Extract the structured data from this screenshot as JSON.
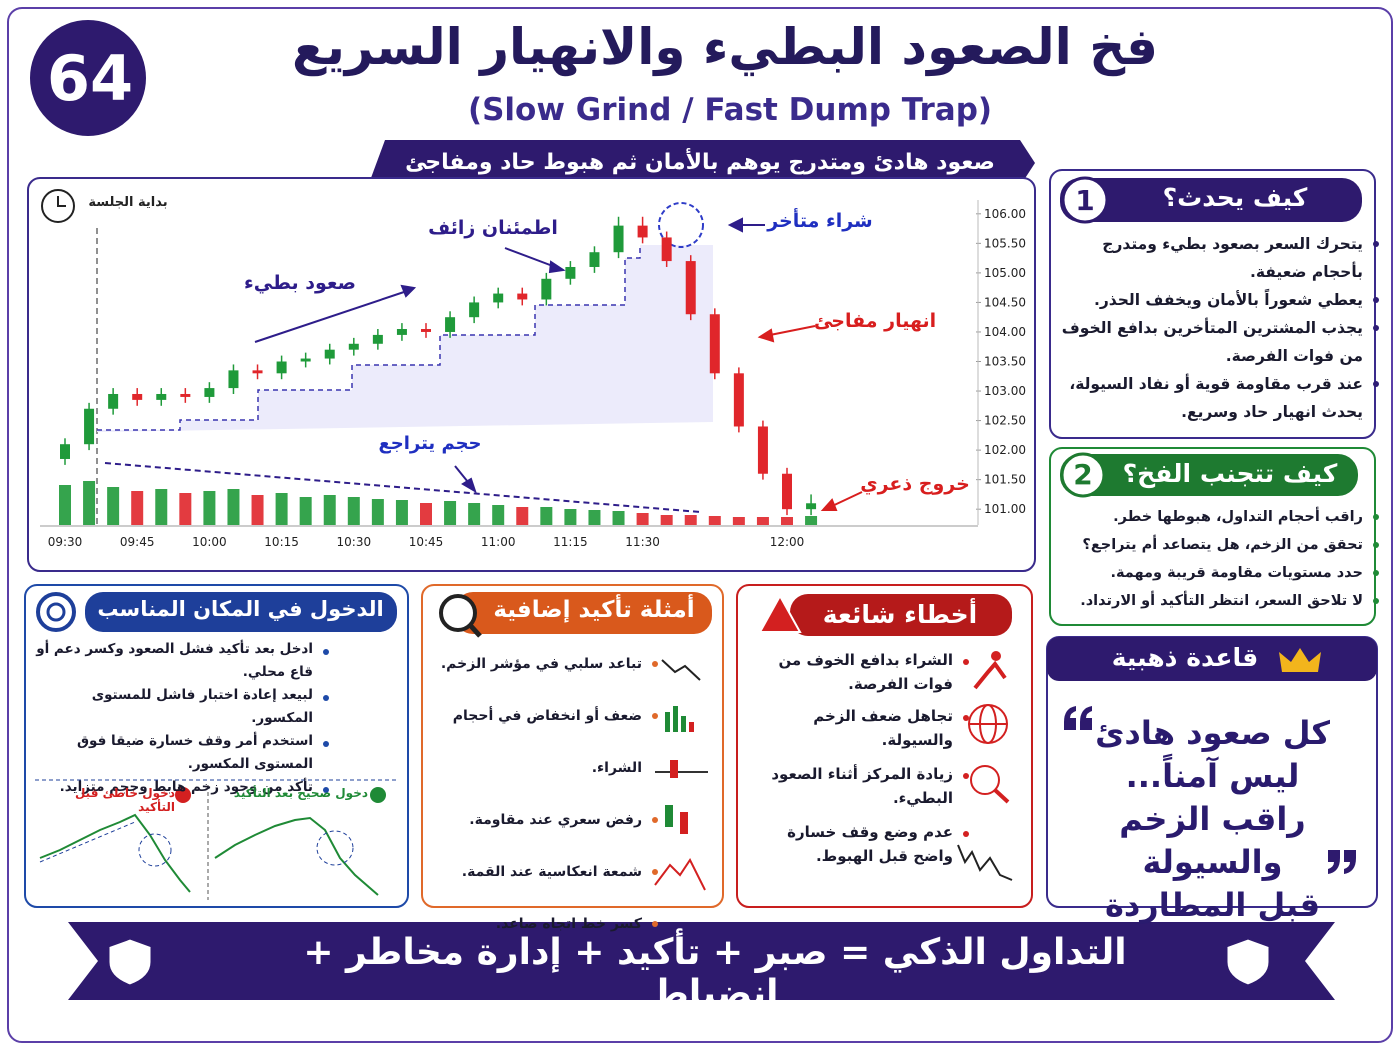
{
  "header": {
    "badge": "64",
    "title": "فخ الصعود البطيء والانهيار السريع",
    "subtitle": "(Slow Grind / Fast Dump Trap)",
    "banner": "صعود هادئ ومتدرج يوهم بالأمان ثم هبوط حاد ومفاجئ"
  },
  "chart_data": {
    "type": "candlestick",
    "annotations": {
      "session_start": "بداية الجلسة",
      "slow_rise": "صعود بطيء",
      "false_calm": "اطمئنان زائف",
      "late_buy": "شراء متأخر",
      "sudden_crash": "انهيار مفاجئ",
      "volume_decline": "حجم يتراجع",
      "panic_exit": "خروج ذعري"
    },
    "x": [
      "09:30",
      "09:35",
      "09:40",
      "09:45",
      "09:50",
      "09:55",
      "10:00",
      "10:05",
      "10:10",
      "10:15",
      "10:20",
      "10:25",
      "10:30",
      "10:35",
      "10:40",
      "10:45",
      "10:50",
      "10:55",
      "11:00",
      "11:05",
      "11:10",
      "11:15",
      "11:20",
      "11:25",
      "11:30",
      "11:35",
      "11:40",
      "11:45",
      "11:50",
      "11:55",
      "12:00",
      "12:05"
    ],
    "open": [
      101.85,
      102.1,
      102.7,
      102.95,
      102.85,
      102.95,
      102.9,
      103.05,
      103.35,
      103.3,
      103.5,
      103.55,
      103.7,
      103.8,
      103.95,
      104.05,
      104.0,
      104.25,
      104.5,
      104.65,
      104.55,
      104.9,
      105.1,
      105.35,
      105.8,
      105.6,
      105.2,
      104.3,
      103.3,
      102.4,
      101.6,
      101.0
    ],
    "high": [
      102.2,
      102.8,
      103.05,
      103.05,
      103.05,
      103.05,
      103.15,
      103.45,
      103.45,
      103.6,
      103.65,
      103.8,
      103.9,
      104.05,
      104.15,
      104.15,
      104.35,
      104.6,
      104.75,
      104.75,
      105.0,
      105.2,
      105.45,
      105.95,
      105.95,
      105.7,
      105.3,
      104.4,
      103.4,
      102.5,
      101.7,
      101.25
    ],
    "low": [
      101.75,
      102.0,
      102.6,
      102.75,
      102.75,
      102.8,
      102.8,
      102.95,
      103.2,
      103.2,
      103.4,
      103.45,
      103.6,
      103.7,
      103.85,
      103.9,
      103.9,
      104.15,
      104.4,
      104.45,
      104.45,
      104.8,
      105.0,
      105.25,
      105.5,
      105.1,
      104.2,
      103.2,
      102.3,
      101.5,
      100.9,
      100.9
    ],
    "close": [
      102.1,
      102.7,
      102.95,
      102.85,
      102.95,
      102.9,
      103.05,
      103.35,
      103.3,
      103.5,
      103.55,
      103.7,
      103.8,
      103.95,
      104.05,
      104.0,
      104.25,
      104.5,
      104.65,
      104.55,
      104.9,
      105.1,
      105.35,
      105.8,
      105.6,
      105.2,
      104.3,
      103.3,
      102.4,
      101.6,
      101.0,
      101.1
    ],
    "volume": [
      40,
      44,
      38,
      34,
      36,
      32,
      34,
      36,
      30,
      32,
      28,
      30,
      28,
      26,
      25,
      22,
      24,
      22,
      20,
      18,
      18,
      16,
      15,
      14,
      12,
      10,
      10,
      9,
      8,
      8,
      8,
      9
    ],
    "up_color": "#1f9a3a",
    "down_color": "#e0262b",
    "ylim": [
      100.8,
      106.2
    ],
    "yticks": [
      {
        "value": 101,
        "label": "101.00"
      },
      {
        "value": 101.5,
        "label": "101.50"
      },
      {
        "value": 102,
        "label": "102.00"
      },
      {
        "value": 102.5,
        "label": "102.50"
      },
      {
        "value": 103,
        "label": "103.00"
      },
      {
        "value": 103.5,
        "label": "103.50"
      },
      {
        "value": 104,
        "label": "104.00"
      },
      {
        "value": 104.5,
        "label": "104.50"
      },
      {
        "value": 105,
        "label": "105.00"
      },
      {
        "value": 105.5,
        "label": "105.50"
      },
      {
        "value": 106,
        "label": "106.00"
      }
    ],
    "xticks": [
      "09:30",
      "09:45",
      "10:00",
      "10:15",
      "10:30",
      "10:45",
      "11:00",
      "11:15",
      "11:30",
      "12:00"
    ]
  },
  "how": {
    "number": "1",
    "title": "كيف يحدث؟",
    "items": [
      "يتحرك السعر بصعود بطيء ومتدرج بأحجام ضعيفة.",
      "يعطي شعوراً بالأمان ويخفف الحذر.",
      "يجذب المشترين المتأخرين بدافع الخوف من فوات الفرصة.",
      "عند قرب مقاومة قوية أو نفاد السيولة، يحدث انهيار حاد وسريع."
    ]
  },
  "avoid": {
    "number": "2",
    "title": "كيف تتجنب الفخ؟",
    "items": [
      "راقب أحجام التداول، هبوطها خطر.",
      "تحقق من الزخم، هل يتصاعد أم يتراجع؟",
      "حدد مستويات مقاومة قريبة ومهمة.",
      "لا تلاحق السعر، انتظر التأكيد أو الارتداد."
    ]
  },
  "golden": {
    "title": "قاعدة ذهبية",
    "lines": [
      "كل صعود هادئ",
      "ليس آمناً...",
      "راقب الزخم والسيولة",
      "قبل المطاردة"
    ]
  },
  "entry": {
    "title": "الدخول في المكان المناسب",
    "items": [
      "ادخل بعد تأكيد فشل الصعود وكسر دعم أو قاع محلي.",
      "لبيعد إعادة اختبار فاشل للمستوى المكسور.",
      "استخدم أمر وقف خسارة ضيقا فوق المستوى المكسور.",
      "تأكد من وجود زخم هابط وحجم متزايد."
    ],
    "wrong": "دخول خاطئ قبل التأكيد",
    "right": "دخول صحيح بعد التأكيد"
  },
  "confirm": {
    "title": "أمثلة تأكيد إضافية",
    "items": [
      "تباعد سلبي في مؤشر الزخم.",
      "ضعف أو انخفاض في أحجام الشراء.",
      "رفض سعري عند مقاومة.",
      "شمعة انعكاسية عند القمة.",
      "كسر خط اتجاه صاعد."
    ]
  },
  "mistakes": {
    "title": "أخطاء شائعة",
    "items": [
      "الشراء بدافع الخوف من فوات الفرصة.",
      "تجاهل ضعف الزخم والسيولة.",
      "زيادة المركز أثناء الصعود البطيء.",
      "عدم وضع وقف خسارة واضح قبل الهبوط."
    ]
  },
  "footer": {
    "text": "التداول الذكي = صبر + تأكيد + إدارة مخاطر + انضباط"
  }
}
